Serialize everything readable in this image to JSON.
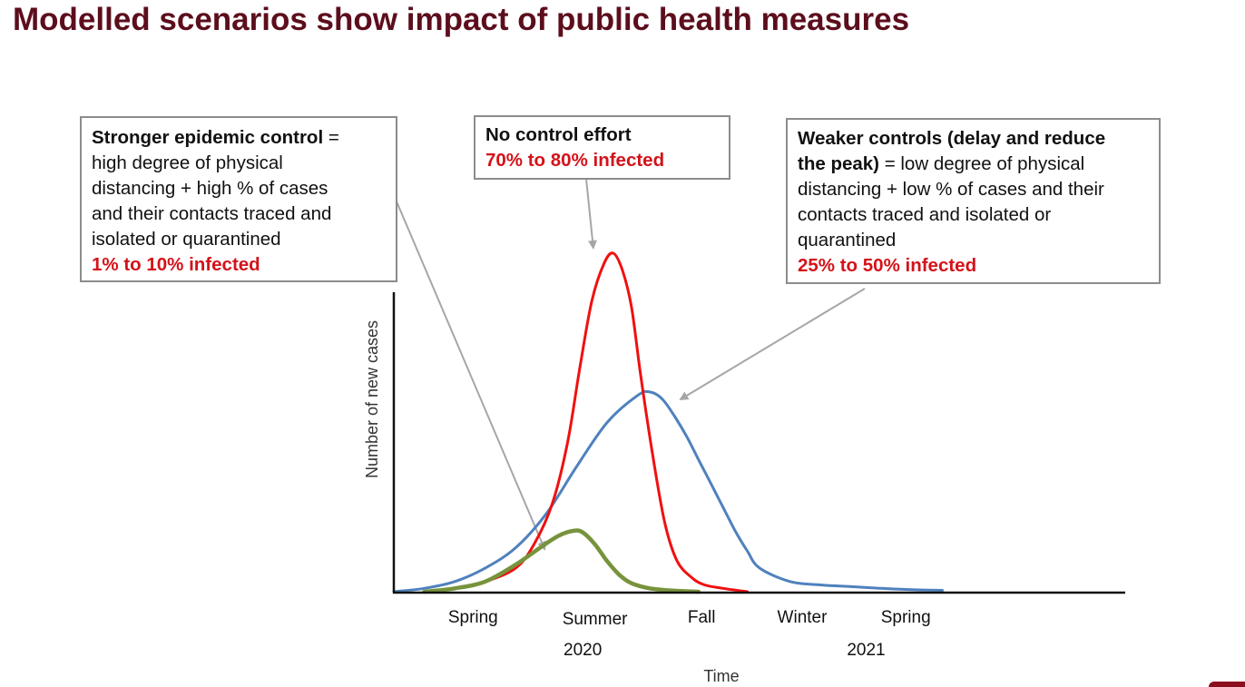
{
  "title": "Modelled scenarios show impact of public health measures",
  "annotations": {
    "stronger": {
      "heading": "Stronger epidemic control",
      "lines": [
        " =",
        "high degree of physical",
        "distancing + high % of cases",
        "and their contacts traced and",
        "isolated or quarantined"
      ],
      "result": "1% to 10% infected"
    },
    "none": {
      "heading": "No control effort",
      "result": "70% to 80% infected"
    },
    "weaker": {
      "heading_line1": "Weaker controls (delay and reduce",
      "heading_line2": "the peak)",
      "lines": [
        " = low degree of physical",
        "distancing + low % of cases and their",
        "contacts traced and isolated or",
        "quarantined"
      ],
      "result": "25% to 50% infected"
    }
  },
  "chart_data": {
    "type": "line",
    "xlabel": "Time",
    "ylabel": "Number of new cases",
    "xlim": [
      0,
      12
    ],
    "ylim": [
      0,
      100
    ],
    "season_ticks": [
      {
        "label": "Spring",
        "x": 1.3
      },
      {
        "label": "Summer",
        "x": 3.3
      },
      {
        "label": "Fall",
        "x": 5.05
      },
      {
        "label": "Winter",
        "x": 6.7
      },
      {
        "label": "Spring",
        "x": 8.4
      }
    ],
    "year_ticks": [
      {
        "label": "2020",
        "x": 3.1
      },
      {
        "label": "2021",
        "x": 7.75
      }
    ],
    "colors": {
      "none": "#f01010",
      "weaker": "#4f81bd",
      "stronger": "#77933c",
      "axis": "#111111",
      "arrow": "#a6a6a6"
    },
    "series": [
      {
        "key": "none",
        "x": [
          0.5,
          1.0,
          1.5,
          2.0,
          2.3,
          2.6,
          2.85,
          3.05,
          3.25,
          3.45,
          3.6,
          3.75,
          3.9,
          4.05,
          4.25,
          4.45,
          4.65,
          4.9,
          5.1,
          5.4,
          5.8
        ],
        "values": [
          0,
          1,
          3,
          7,
          14,
          26,
          44,
          66,
          86,
          97,
          100,
          95,
          84,
          64,
          40,
          20,
          9,
          4,
          2,
          1,
          0
        ]
      },
      {
        "key": "weaker",
        "x": [
          0,
          0.5,
          1.0,
          1.5,
          2.0,
          2.5,
          3.0,
          3.5,
          4.0,
          4.2,
          4.4,
          4.6,
          4.8,
          5.0,
          5.2,
          5.4,
          5.6,
          5.8,
          6.0,
          6.5,
          7.0,
          7.5,
          8.0,
          8.5,
          9.0
        ],
        "values": [
          0,
          1,
          3,
          7,
          13,
          23,
          37,
          50,
          58,
          59,
          57,
          52,
          46,
          39,
          32,
          25,
          18,
          12,
          7,
          3,
          2,
          1.5,
          1,
          0.6,
          0.4
        ]
      },
      {
        "key": "stronger",
        "x": [
          0.5,
          1.0,
          1.5,
          2.0,
          2.4,
          2.7,
          2.95,
          3.1,
          3.3,
          3.5,
          3.7,
          3.9,
          4.2,
          4.6,
          5.0
        ],
        "values": [
          0,
          1,
          3,
          8,
          13,
          16.5,
          18,
          17.5,
          14,
          9,
          5,
          2.5,
          1,
          0.3,
          0
        ]
      }
    ]
  }
}
